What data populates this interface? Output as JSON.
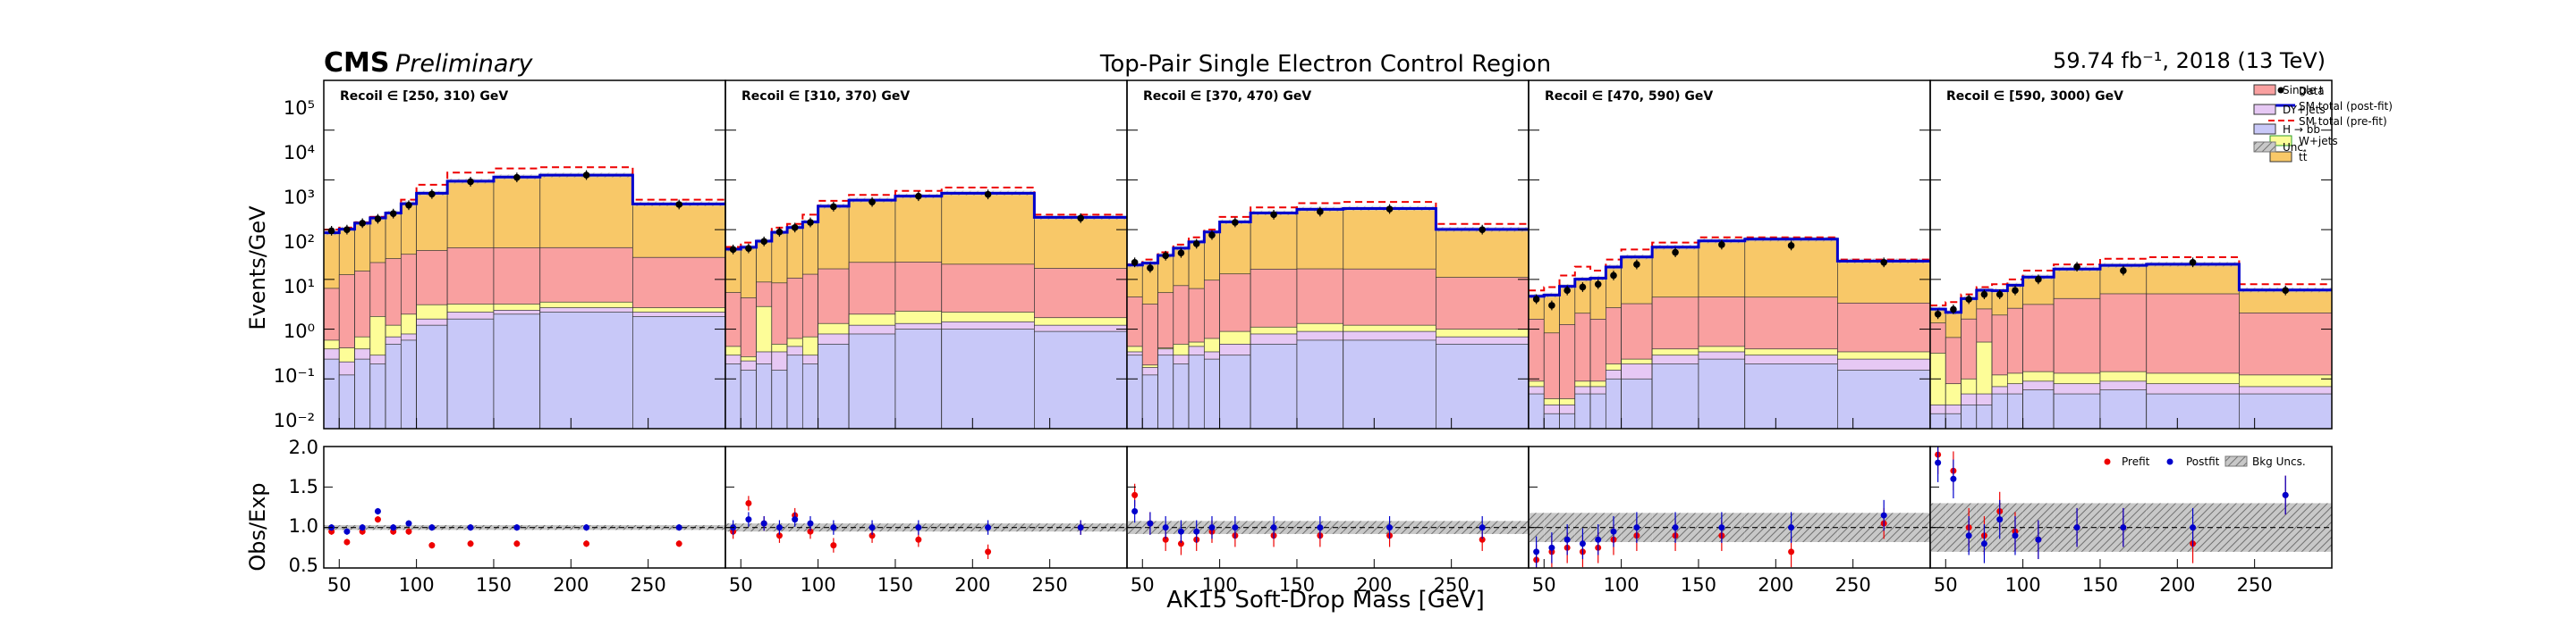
{
  "header": {
    "experiment": "CMS",
    "status": "Preliminary",
    "title": "Top-Pair Single Electron Control Region",
    "lumi": "59.74 fb⁻¹, 2018 (13 TeV)"
  },
  "axes": {
    "ylabel_top": "Events/GeV",
    "ylabel_bottom": "Obs/Exp",
    "xlabel": "AK15 Soft-Drop Mass [GeV]",
    "top_ticks": [
      "10⁵",
      "10⁴",
      "10³",
      "10²",
      "10¹",
      "10⁰",
      "10⁻¹",
      "10⁻²"
    ],
    "bottom_ticks": [
      "2.0",
      "1.5",
      "1.0",
      "0.5"
    ],
    "x_ticks": [
      "50",
      "100",
      "150",
      "200",
      "250"
    ]
  },
  "legend": {
    "data": "Data",
    "post": "SM total (post-fit)",
    "pre": "SM total (pre-fit)",
    "wjets": "W+jets",
    "ttbar": "tt̄",
    "singlet": "Single t",
    "dyjets": "DY+jets",
    "hbb": "H → bb̄",
    "unc": "Unc."
  },
  "ratio_legend": {
    "prefit": "Prefit",
    "postfit": "Postfit",
    "bkg": "Bkg Uncs."
  },
  "colors": {
    "ttbar": "#f8c868",
    "singlet": "#f9a0a0",
    "wjets": "#fdfd98",
    "dyjets": "#e6c8f4",
    "hbb": "#c8c8f8",
    "post": "#0000cc",
    "pre": "#ee0000",
    "unc": "#9a9a9a"
  },
  "chart_data": {
    "type": "bar",
    "stacked": true,
    "log_y": true,
    "ylim": [
      0.01,
      100000
    ],
    "ratio_ylim": [
      0.5,
      2.0
    ],
    "xlim": [
      40,
      300
    ],
    "bin_edges": [
      40,
      50,
      60,
      70,
      80,
      90,
      100,
      120,
      150,
      180,
      240,
      300
    ],
    "panels": [
      {
        "label": "Recoil ∈ [250, 310) GeV",
        "hbb": [
          0.25,
          0.12,
          0.25,
          0.2,
          0.5,
          0.6,
          1.2,
          1.6,
          2.0,
          2.2,
          1.8
        ],
        "dyjets": [
          0.15,
          0.1,
          0.15,
          0.1,
          0.2,
          0.2,
          0.4,
          0.6,
          0.4,
          0.5,
          0.4
        ],
        "wjets": [
          0.2,
          0.2,
          0.3,
          1.5,
          0.5,
          1.2,
          1.5,
          1.0,
          0.8,
          0.8,
          0.5
        ],
        "singlet": [
          6,
          12,
          14,
          20,
          25,
          30,
          35,
          40,
          40,
          40,
          25
        ],
        "ttbar": [
          80,
          90,
          120,
          150,
          190,
          300,
          500,
          900,
          1100,
          1200,
          300
        ],
        "prefit_total": [
          100,
          110,
          140,
          180,
          220,
          400,
          800,
          1400,
          1700,
          1800,
          400
        ],
        "data": [
          95,
          100,
          135,
          165,
          210,
          310,
          520,
          920,
          1120,
          1250,
          320
        ],
        "ratio_post": [
          1.0,
          0.95,
          1.0,
          1.2,
          1.0,
          1.05,
          1.0,
          1.0,
          1.0,
          1.0,
          1.0
        ],
        "ratio_pre": [
          0.95,
          0.82,
          0.95,
          1.1,
          0.95,
          0.95,
          0.78,
          0.8,
          0.8,
          0.8,
          0.8
        ]
      },
      {
        "label": "Recoil ∈ [310, 370) GeV",
        "hbb": [
          0.2,
          0.15,
          0.2,
          0.15,
          0.3,
          0.2,
          0.5,
          0.8,
          1.0,
          1.0,
          0.9
        ],
        "dyjets": [
          0.1,
          0.08,
          0.15,
          0.2,
          0.15,
          0.1,
          0.3,
          0.4,
          0.3,
          0.4,
          0.3
        ],
        "wjets": [
          0.15,
          0.05,
          2.5,
          0.15,
          0.2,
          0.4,
          0.5,
          0.8,
          1.0,
          0.8,
          0.5
        ],
        "singlet": [
          5,
          4,
          6,
          8,
          10,
          12,
          15,
          20,
          20,
          18,
          15
        ],
        "ttbar": [
          35,
          40,
          50,
          80,
          100,
          130,
          280,
          370,
          450,
          520,
          160
        ],
        "prefit_total": [
          45,
          55,
          60,
          110,
          130,
          200,
          380,
          500,
          600,
          700,
          200
        ],
        "data": [
          40,
          42,
          58,
          90,
          110,
          140,
          290,
          360,
          470,
          510,
          170
        ],
        "ratio_post": [
          1.0,
          1.1,
          1.05,
          1.0,
          1.1,
          1.05,
          1.0,
          1.0,
          1.0,
          1.0,
          1.0
        ],
        "ratio_pre": [
          0.95,
          1.3,
          1.05,
          0.9,
          1.15,
          0.95,
          0.78,
          0.9,
          0.85,
          0.7,
          1.0
        ]
      },
      {
        "label": "Recoil ∈ [370, 470) GeV",
        "hbb": [
          0.3,
          0.12,
          0.3,
          0.2,
          0.3,
          0.25,
          0.3,
          0.5,
          0.6,
          0.6,
          0.5
        ],
        "dyjets": [
          0.05,
          0.05,
          0.1,
          0.1,
          0.15,
          0.1,
          0.2,
          0.3,
          0.3,
          0.3,
          0.2
        ],
        "wjets": [
          0.1,
          0.02,
          0.02,
          0.2,
          0.1,
          0.3,
          0.4,
          0.3,
          0.4,
          0.3,
          0.3
        ],
        "singlet": [
          4,
          3,
          5,
          7,
          6,
          9,
          12,
          15,
          15,
          15,
          10
        ],
        "ttbar": [
          15,
          18,
          25,
          35,
          50,
          80,
          130,
          200,
          240,
          250,
          90
        ],
        "prefit_total": [
          20,
          25,
          35,
          50,
          70,
          100,
          180,
          280,
          340,
          360,
          130
        ],
        "data": [
          22,
          17,
          30,
          34,
          52,
          78,
          140,
          200,
          230,
          260,
          100
        ],
        "ratio_post": [
          1.2,
          1.05,
          1.0,
          0.95,
          0.95,
          1.0,
          1.0,
          1.0,
          1.0,
          1.0,
          1.0
        ],
        "ratio_pre": [
          1.4,
          1.05,
          0.85,
          0.8,
          0.85,
          0.95,
          0.9,
          0.9,
          0.9,
          0.9,
          0.85
        ]
      },
      {
        "label": "Recoil ∈ [470, 590) GeV",
        "hbb": [
          0.05,
          0.02,
          0.02,
          0.05,
          0.05,
          0.1,
          0.1,
          0.2,
          0.25,
          0.2,
          0.15
        ],
        "dyjets": [
          0.02,
          0.01,
          0.01,
          0.02,
          0.02,
          0.05,
          0.1,
          0.1,
          0.1,
          0.1,
          0.1
        ],
        "wjets": [
          0.02,
          0.01,
          0.01,
          0.02,
          0.02,
          0.05,
          0.05,
          0.1,
          0.1,
          0.1,
          0.1
        ],
        "singlet": [
          1.5,
          0.8,
          1.2,
          2,
          1.5,
          2.5,
          3,
          4,
          4,
          4,
          3
        ],
        "ttbar": [
          3,
          4,
          6,
          8,
          9,
          15,
          25,
          40,
          55,
          60,
          20
        ],
        "prefit_total": [
          6,
          7,
          12,
          18,
          15,
          25,
          40,
          55,
          70,
          70,
          25
        ],
        "data": [
          4,
          3,
          6,
          7,
          8,
          12,
          20,
          35,
          50,
          48,
          22
        ],
        "ratio_post": [
          0.7,
          0.75,
          0.85,
          0.8,
          0.85,
          0.95,
          1.0,
          1.0,
          1.0,
          1.0,
          1.15
        ],
        "ratio_pre": [
          0.6,
          0.7,
          0.75,
          0.7,
          0.75,
          0.85,
          0.9,
          0.9,
          0.9,
          0.7,
          1.05
        ]
      },
      {
        "label": "Recoil ∈ [590, 3000) GeV",
        "hbb": [
          0.02,
          0.02,
          0.03,
          0.03,
          0.05,
          0.05,
          0.06,
          0.05,
          0.06,
          0.05,
          0.05
        ],
        "dyjets": [
          0.01,
          0.01,
          0.02,
          0.02,
          0.02,
          0.03,
          0.03,
          0.03,
          0.03,
          0.03,
          0.02
        ],
        "wjets": [
          0.3,
          0.05,
          0.05,
          0.5,
          0.05,
          0.05,
          0.05,
          0.05,
          0.05,
          0.05,
          0.05
        ],
        "singlet": [
          1.0,
          0.6,
          1.5,
          2,
          1.8,
          2.5,
          3,
          4,
          5,
          5,
          2
        ],
        "ttbar": [
          1.2,
          1.5,
          2.5,
          3.5,
          4,
          5,
          8,
          12,
          14,
          15,
          4
        ],
        "prefit_total": [
          3,
          3.5,
          5,
          7,
          8,
          10,
          15,
          20,
          26,
          28,
          8
        ],
        "data": [
          2.0,
          2.5,
          4,
          5,
          5,
          6,
          10,
          18,
          15,
          22,
          6
        ],
        "ratio_post": [
          1.8,
          1.6,
          0.9,
          0.8,
          1.1,
          0.9,
          0.85,
          1.0,
          1.0,
          1.0,
          1.4
        ],
        "ratio_pre": [
          1.9,
          1.7,
          1.0,
          0.9,
          1.2,
          0.95,
          0.85,
          1.0,
          1.0,
          0.8,
          1.4
        ]
      }
    ]
  }
}
